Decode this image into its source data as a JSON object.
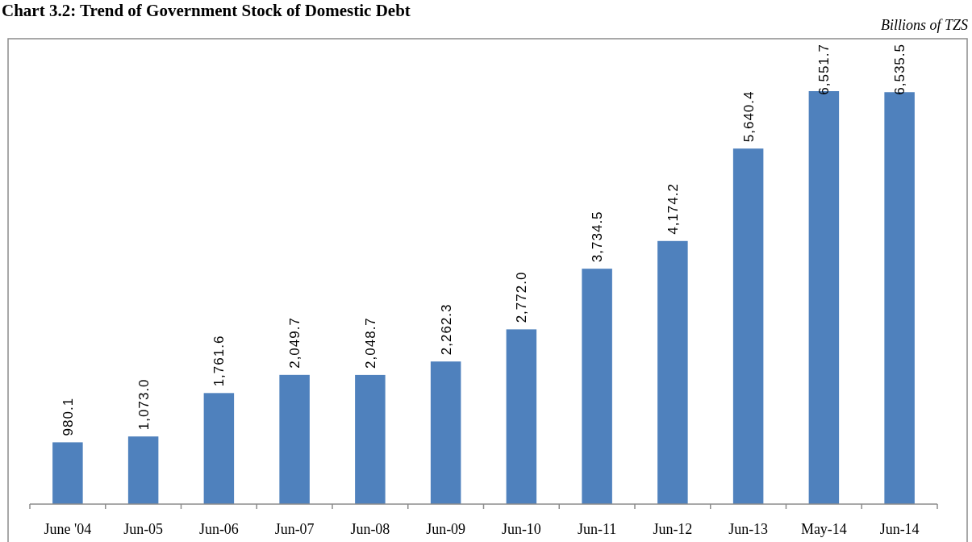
{
  "chart_data": {
    "type": "bar",
    "title": "Chart 3.2: Trend of Government Stock of Domestic Debt",
    "annotations": [
      "Billions of TZS"
    ],
    "categories": [
      "June '04",
      "Jun-05",
      "Jun-06",
      "Jun-07",
      "Jun-08",
      "Jun-09",
      "Jun-10",
      "Jun-11",
      "Jun-12",
      "Jun-13",
      "May-14",
      "Jun-14"
    ],
    "values": [
      980.1,
      1073.0,
      1761.6,
      2049.7,
      2048.7,
      2262.3,
      2772.0,
      3734.5,
      4174.2,
      5640.4,
      6551.7,
      6535.5
    ],
    "value_labels": [
      "980.1",
      "1,073.0",
      "1,761.6",
      "2,049.7",
      "2,048.7",
      "2,262.3",
      "2,772.0",
      "3,734.5",
      "4,174.2",
      "5,640.4",
      "6,551.7",
      "6,535.5"
    ],
    "color": "#4f81bd"
  }
}
